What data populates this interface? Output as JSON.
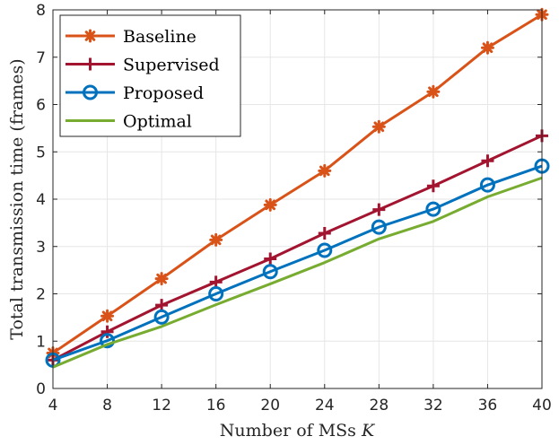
{
  "chart_data": {
    "type": "line",
    "title": "",
    "xlabel": "Number of MSs",
    "xlabel_var": "K",
    "ylabel": "Total transmission time (frames)",
    "x": [
      4,
      8,
      12,
      16,
      20,
      24,
      28,
      32,
      36,
      40
    ],
    "xlim": [
      4,
      40
    ],
    "ylim": [
      0,
      8
    ],
    "xticks": [
      4,
      8,
      12,
      16,
      20,
      24,
      28,
      32,
      36,
      40
    ],
    "yticks": [
      0,
      1,
      2,
      3,
      4,
      5,
      6,
      7,
      8
    ],
    "grid": true,
    "legend_position": "top-left",
    "series": [
      {
        "name": "Baseline",
        "color": "#D95319",
        "marker": "asterisk",
        "values": [
          0.75,
          1.53,
          2.32,
          3.14,
          3.88,
          4.6,
          5.53,
          6.27,
          7.2,
          7.9
        ]
      },
      {
        "name": "Supervised",
        "color": "#A2142F",
        "marker": "plus",
        "values": [
          0.6,
          1.2,
          1.76,
          2.25,
          2.74,
          3.28,
          3.78,
          4.28,
          4.81,
          5.34
        ]
      },
      {
        "name": "Proposed",
        "color": "#0072BD",
        "marker": "circle",
        "values": [
          0.6,
          1.01,
          1.51,
          2.0,
          2.47,
          2.92,
          3.41,
          3.79,
          4.3,
          4.7
        ]
      },
      {
        "name": "Optimal",
        "color": "#77AC30",
        "marker": "none",
        "values": [
          0.45,
          0.93,
          1.31,
          1.77,
          2.21,
          2.66,
          3.16,
          3.53,
          4.05,
          4.45
        ]
      }
    ]
  }
}
